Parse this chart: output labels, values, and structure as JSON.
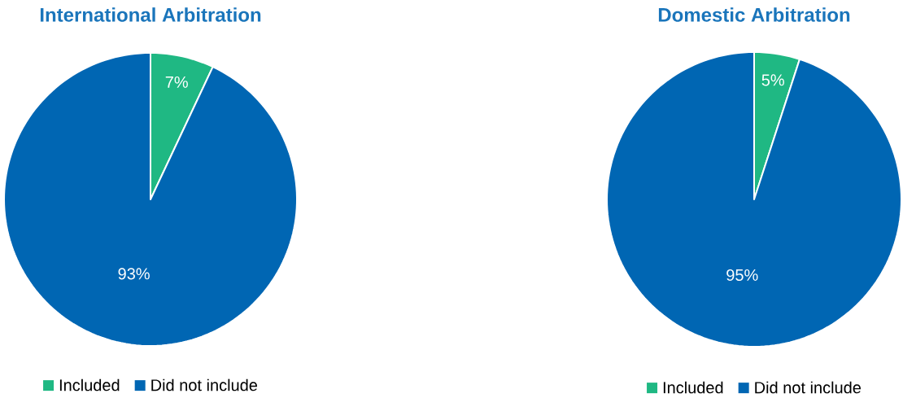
{
  "chart_data": [
    {
      "type": "pie",
      "title": "International Arbitration",
      "categories": [
        "Included",
        "Did not include"
      ],
      "values": [
        7,
        93
      ],
      "value_labels": [
        "7%",
        "93%"
      ],
      "colors": [
        "#1fb883",
        "#0066b3"
      ],
      "legend": "bottom"
    },
    {
      "type": "pie",
      "title": "Domestic Arbitration",
      "categories": [
        "Included",
        "Did not include"
      ],
      "values": [
        5,
        95
      ],
      "value_labels": [
        "5%",
        "95%"
      ],
      "colors": [
        "#1fb883",
        "#0066b3"
      ],
      "legend": "bottom"
    }
  ]
}
